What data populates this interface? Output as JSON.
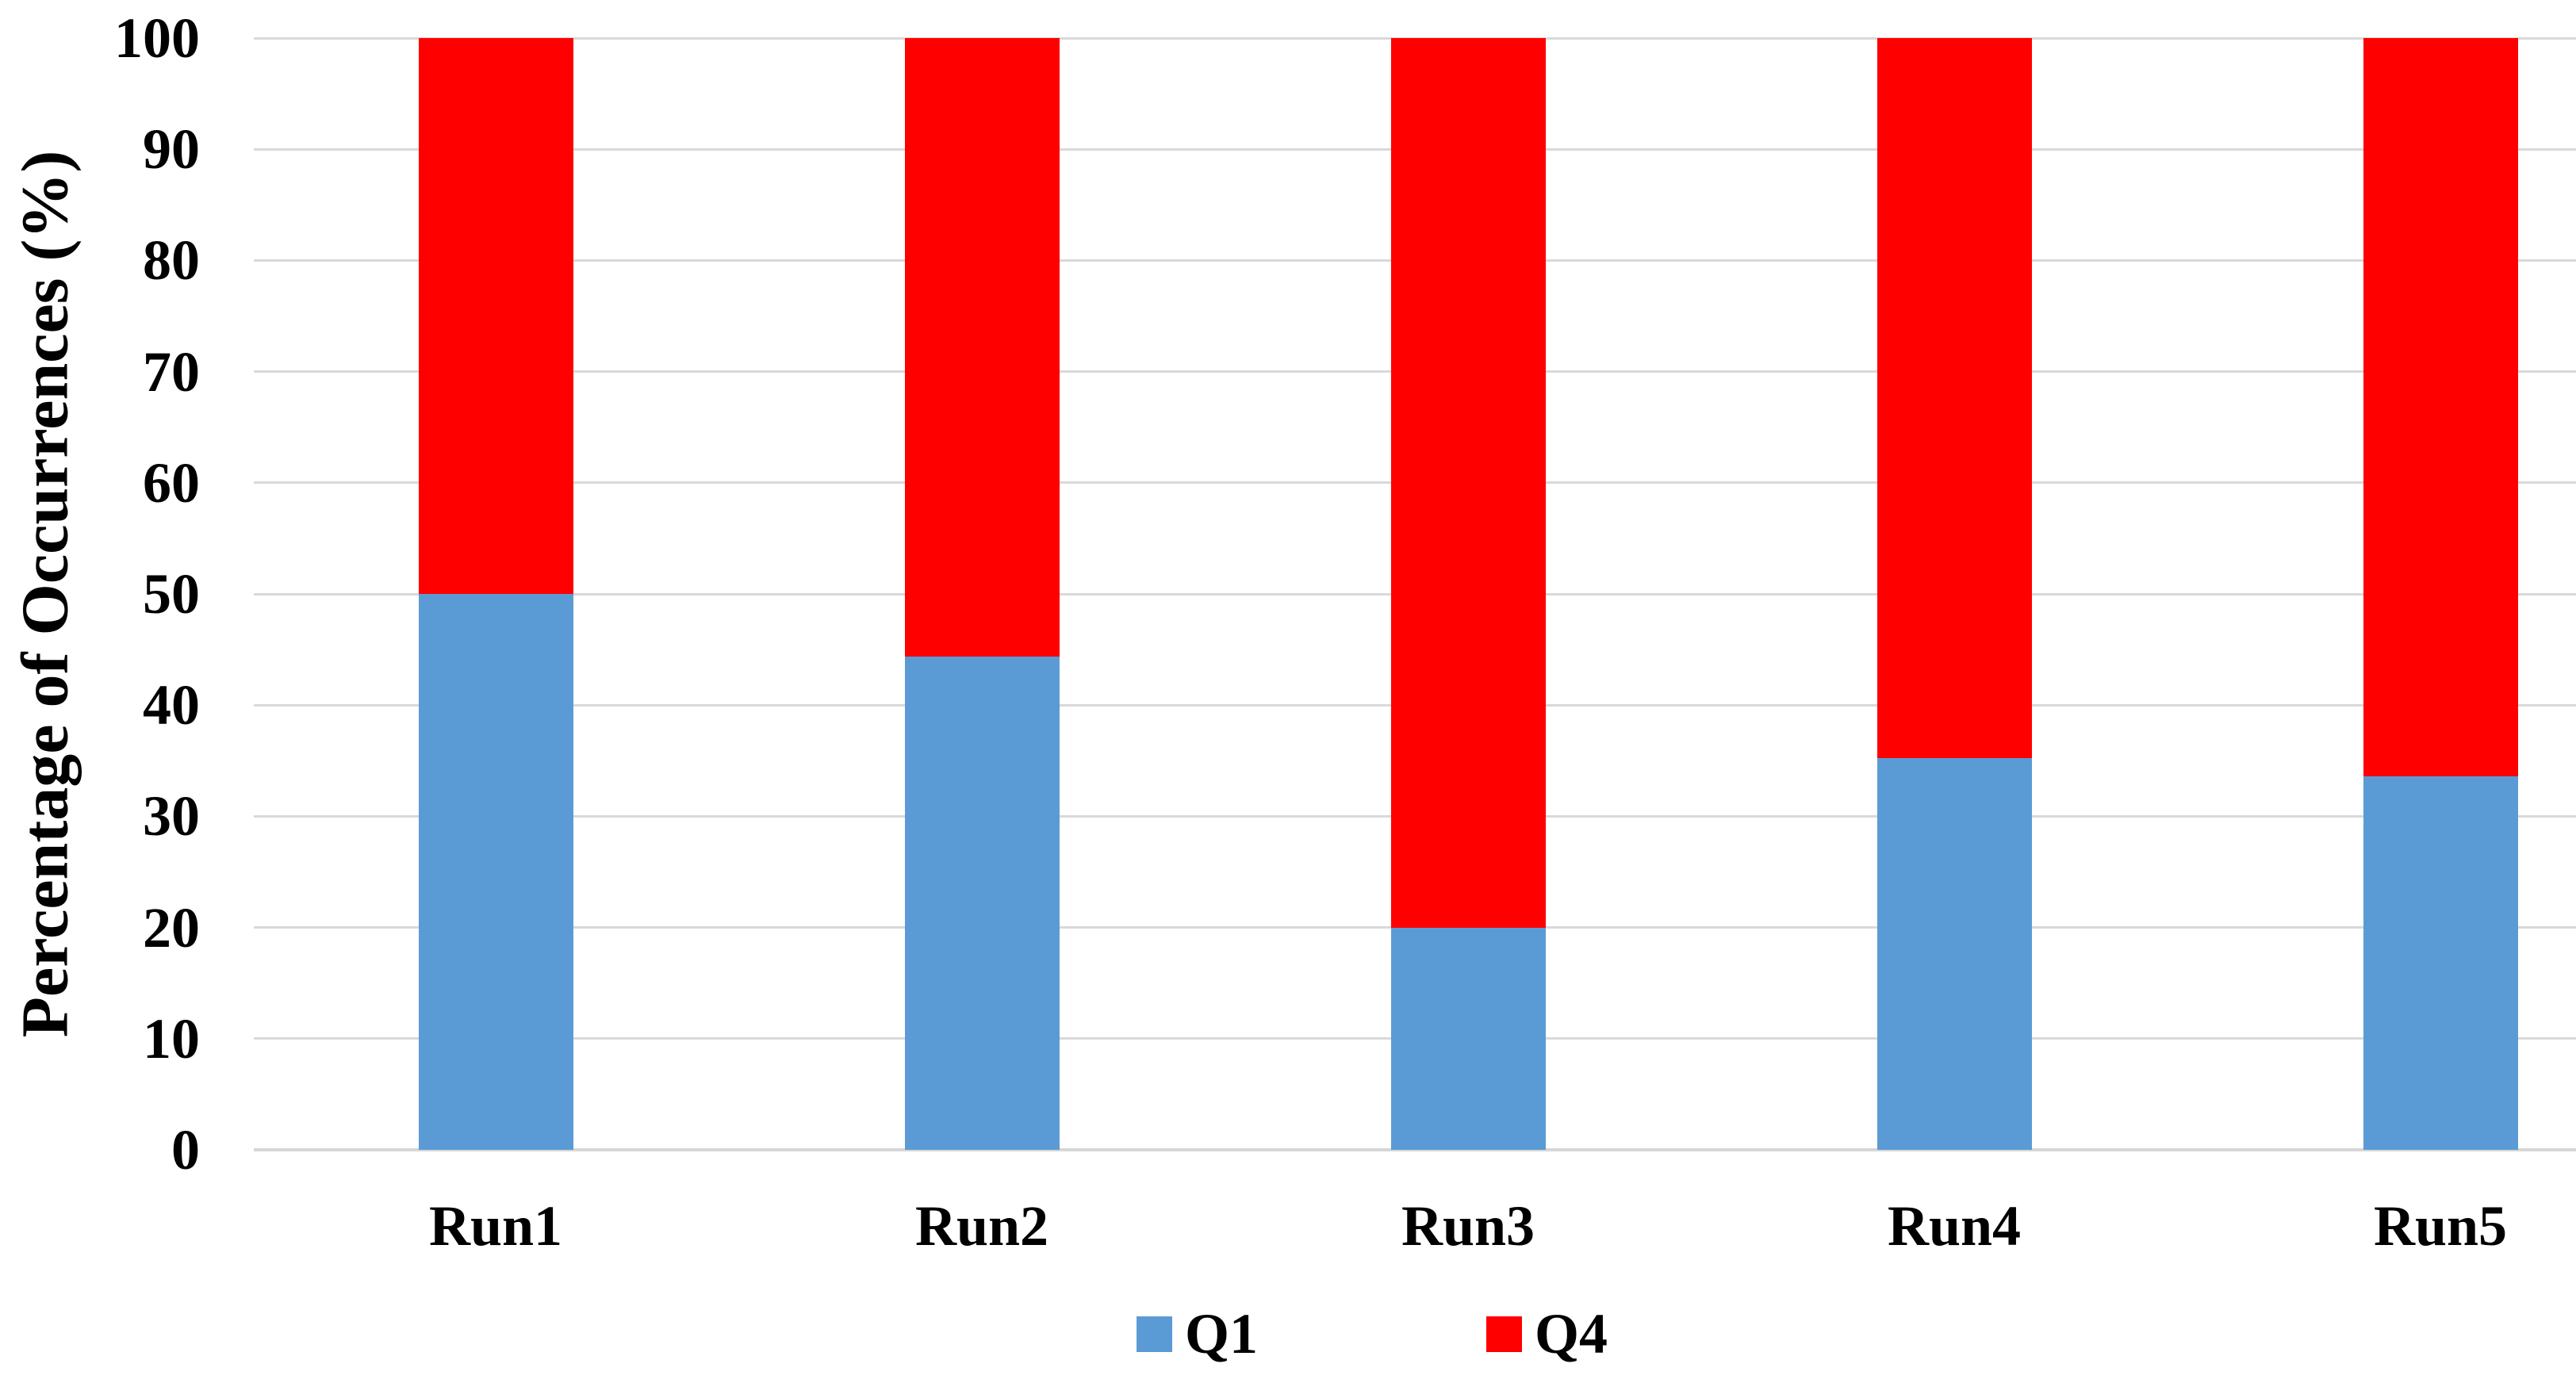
{
  "chart_data": {
    "type": "bar",
    "stacked": true,
    "title": "",
    "categories": [
      "Run1",
      "Run2",
      "Run3",
      "Run4",
      "Run5"
    ],
    "series": [
      {
        "name": "Q1",
        "color": "#5B9BD5",
        "values": [
          50,
          44.4,
          20,
          35.2,
          33.6
        ]
      },
      {
        "name": "Q4",
        "color": "#FF0000",
        "values": [
          50,
          55.6,
          80,
          64.8,
          66.4
        ]
      }
    ],
    "xlabel": "",
    "ylabel": "Percentage of Occurrences (%)",
    "ylim": [
      0,
      100
    ],
    "yticks": [
      0,
      10,
      20,
      30,
      40,
      50,
      60,
      70,
      80,
      90,
      100
    ],
    "grid": true,
    "legend_position": "bottom",
    "gridline_color": "#D9D9D9",
    "axis_line_color": "#D6D6D6",
    "text_color": "#000000",
    "background_color": "#FFFFFF"
  }
}
